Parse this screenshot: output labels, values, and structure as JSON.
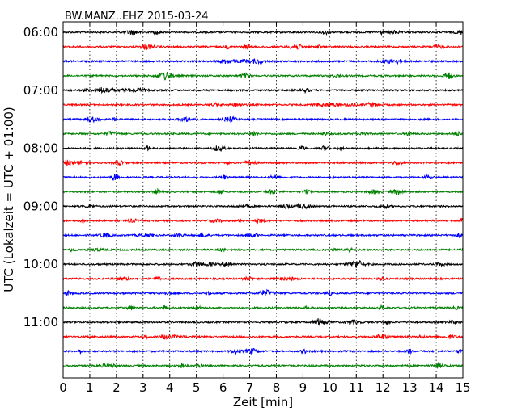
{
  "chart_data": {
    "type": "line",
    "title": "BW.MANZ..EHZ 2015-03-24",
    "xlabel": "Zeit  [min]",
    "ylabel": "UTC (Lokalzeit = UTC + 01:00)",
    "xlim": [
      0,
      15
    ],
    "x_ticks": [
      "0",
      "1",
      "2",
      "3",
      "4",
      "5",
      "6",
      "7",
      "8",
      "9",
      "10",
      "11",
      "12",
      "13",
      "14",
      "15"
    ],
    "y_ticks": [
      "06:00",
      "07:00",
      "08:00",
      "09:00",
      "10:00",
      "11:00"
    ],
    "grid": "vertical dotted lines at each minute",
    "trace_interval_minutes": 15,
    "start_time": "06:00",
    "trace_colors": [
      "#000000",
      "#ff0000",
      "#0000ff",
      "#008000"
    ],
    "series": [
      {
        "start": "06:00"
      },
      {
        "start": "06:15"
      },
      {
        "start": "06:30"
      },
      {
        "start": "06:45"
      },
      {
        "start": "07:00"
      },
      {
        "start": "07:15"
      },
      {
        "start": "07:30"
      },
      {
        "start": "07:45"
      },
      {
        "start": "08:00"
      },
      {
        "start": "08:15"
      },
      {
        "start": "08:30"
      },
      {
        "start": "08:45"
      },
      {
        "start": "09:00"
      },
      {
        "start": "09:15"
      },
      {
        "start": "09:30"
      },
      {
        "start": "09:45"
      },
      {
        "start": "10:00"
      },
      {
        "start": "10:15"
      },
      {
        "start": "10:30"
      },
      {
        "start": "10:45"
      },
      {
        "start": "11:00"
      },
      {
        "start": "11:15"
      },
      {
        "start": "11:30"
      },
      {
        "start": "11:45"
      }
    ]
  }
}
